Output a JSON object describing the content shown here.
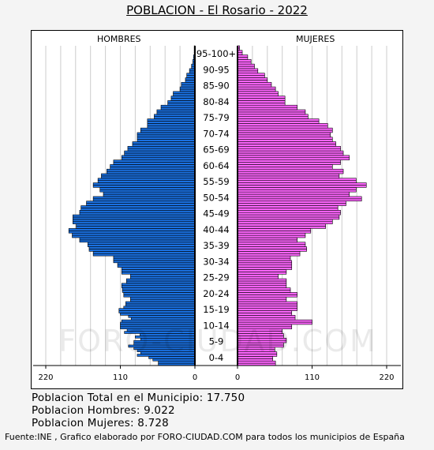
{
  "title": "POBLACION - El Rosario - 2022",
  "left_header": "HOMBRES",
  "right_header": "MUJERES",
  "watermark": "FORO-CIUDAD.COM",
  "stats": {
    "total": "Poblacion Total en el Municipio: 17.750",
    "men": "Poblacion Hombres: 9.022",
    "women": "Poblacion Mujeres: 8.728"
  },
  "source": "Fuente:INE , Grafico elaborado por FORO-CIUDAD.COM para todos los municipios de España",
  "colors": {
    "men": "#1a70e0",
    "women": "#ff66ff",
    "outline": "#000000",
    "grid": "#cccccc"
  },
  "chart_data": {
    "type": "bar",
    "orientation": "horizontal",
    "subtype": "population-pyramid",
    "x_ticks_left": [
      "220",
      "110",
      "0"
    ],
    "x_ticks_right": [
      "0",
      "110",
      "220"
    ],
    "xlim": [
      0,
      220
    ],
    "age_labels": [
      "0-4",
      "5-9",
      "10-14",
      "15-19",
      "20-24",
      "25-29",
      "30-34",
      "35-39",
      "40-44",
      "45-49",
      "50-54",
      "55-59",
      "60-64",
      "65-69",
      "70-74",
      "75-79",
      "80-84",
      "85-90",
      "90-95",
      "95-100+"
    ],
    "men": [
      54,
      54,
      62,
      68,
      85,
      80,
      85,
      90,
      98,
      90,
      90,
      80,
      88,
      81,
      104,
      100,
      110,
      110,
      110,
      108,
      94,
      98,
      110,
      112,
      112,
      105,
      102,
      102,
      95,
      95,
      105,
      105,
      107,
      107,
      108,
      108,
      101,
      101,
      95,
      95,
      108,
      108,
      108,
      114,
      114,
      120,
      120,
      120,
      150,
      150,
      156,
      156,
      158,
      158,
      170,
      170,
      181,
      181,
      186,
      186,
      175,
      175,
      180,
      180,
      180,
      180,
      170,
      170,
      168,
      168,
      160,
      160,
      150,
      150,
      135,
      135,
      140,
      140,
      150,
      150,
      143,
      143,
      138,
      138,
      130,
      130,
      125,
      125,
      120,
      120,
      108,
      108,
      104,
      104,
      99,
      99,
      92,
      92,
      85,
      85,
      85,
      85,
      80,
      80,
      70,
      70,
      70,
      70,
      60,
      60,
      56,
      56,
      50,
      50,
      40,
      40,
      35,
      35,
      32,
      32,
      22,
      22,
      20,
      20,
      14,
      14,
      12,
      12,
      8,
      8,
      5,
      5,
      3,
      3,
      2,
      2,
      1,
      1,
      1,
      1
    ],
    "women": [
      56,
      56,
      52,
      52,
      58,
      58,
      55,
      55,
      68,
      68,
      72,
      72,
      68,
      68,
      66,
      66,
      80,
      80,
      110,
      110,
      85,
      85,
      80,
      80,
      88,
      88,
      88,
      88,
      72,
      72,
      88,
      88,
      78,
      78,
      72,
      72,
      72,
      72,
      60,
      60,
      72,
      72,
      80,
      80,
      80,
      80,
      78,
      78,
      92,
      92,
      102,
      102,
      100,
      100,
      88,
      88,
      100,
      100,
      108,
      108,
      130,
      130,
      140,
      140,
      150,
      150,
      152,
      152,
      148,
      148,
      160,
      160,
      183,
      183,
      165,
      165,
      175,
      175,
      190,
      190,
      175,
      175,
      150,
      150,
      156,
      156,
      140,
      140,
      152,
      152,
      165,
      165,
      156,
      156,
      152,
      152,
      145,
      145,
      140,
      140,
      137,
      137,
      140,
      140,
      133,
      133,
      120,
      120,
      104,
      104,
      100,
      100,
      88,
      88,
      70,
      70,
      70,
      70,
      60,
      60,
      56,
      56,
      50,
      50,
      44,
      44,
      40,
      40,
      30,
      30,
      25,
      25,
      20,
      20,
      15,
      15,
      7,
      7,
      3,
      3
    ]
  }
}
